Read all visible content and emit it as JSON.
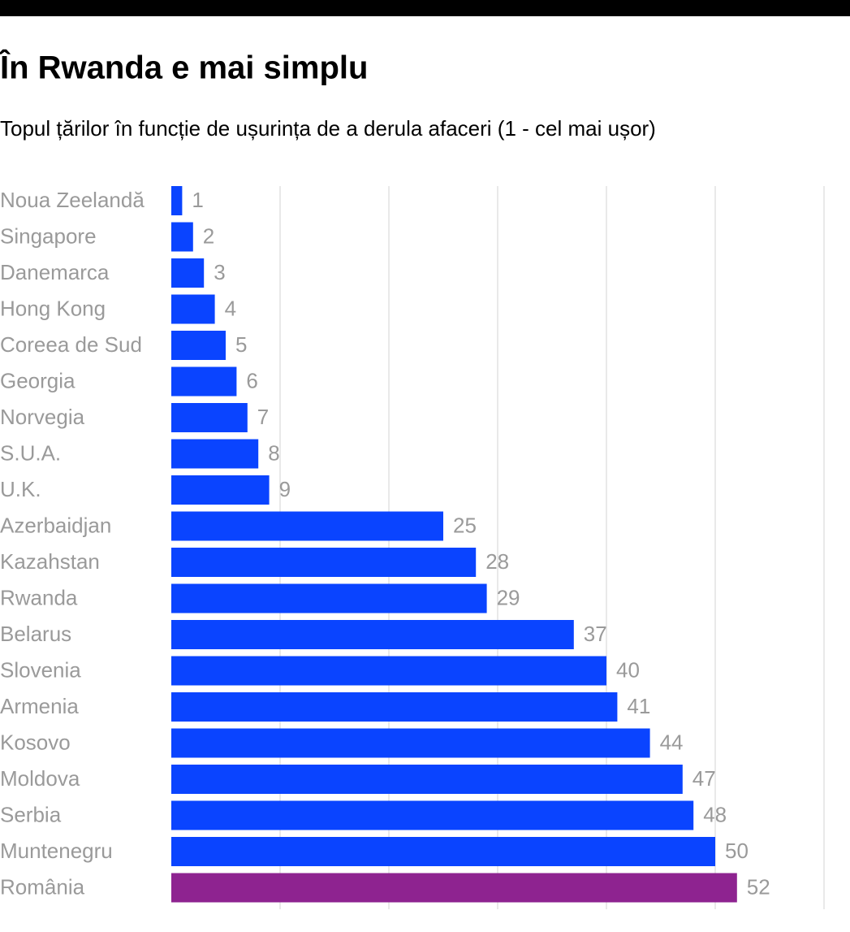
{
  "chart_data": {
    "type": "bar",
    "orientation": "horizontal",
    "title": "În Rwanda e mai simplu",
    "subtitle": "Topul țărilor în funcție de ușurința de a derula afaceri (1 - cel mai ușor)",
    "categories": [
      "Noua Zeelandă",
      "Singapore",
      "Danemarca",
      "Hong Kong",
      "Coreea de Sud",
      "Georgia",
      "Norvegia",
      "S.U.A.",
      "U.K.",
      "Azerbaidjan",
      "Kazahstan",
      "Rwanda",
      "Belarus",
      "Slovenia",
      "Armenia",
      "Kosovo",
      "Moldova",
      "Serbia",
      "Muntenegru",
      "România"
    ],
    "values": [
      1,
      2,
      3,
      4,
      5,
      6,
      7,
      8,
      9,
      25,
      28,
      29,
      37,
      40,
      41,
      44,
      47,
      48,
      50,
      52
    ],
    "colors": [
      "#0a44ff",
      "#0a44ff",
      "#0a44ff",
      "#0a44ff",
      "#0a44ff",
      "#0a44ff",
      "#0a44ff",
      "#0a44ff",
      "#0a44ff",
      "#0a44ff",
      "#0a44ff",
      "#0a44ff",
      "#0a44ff",
      "#0a44ff",
      "#0a44ff",
      "#0a44ff",
      "#0a44ff",
      "#0a44ff",
      "#0a44ff",
      "#8e2390"
    ],
    "xlim": [
      0,
      60
    ],
    "xticks": [
      10,
      20,
      30,
      40,
      50,
      60
    ],
    "grid": true
  }
}
